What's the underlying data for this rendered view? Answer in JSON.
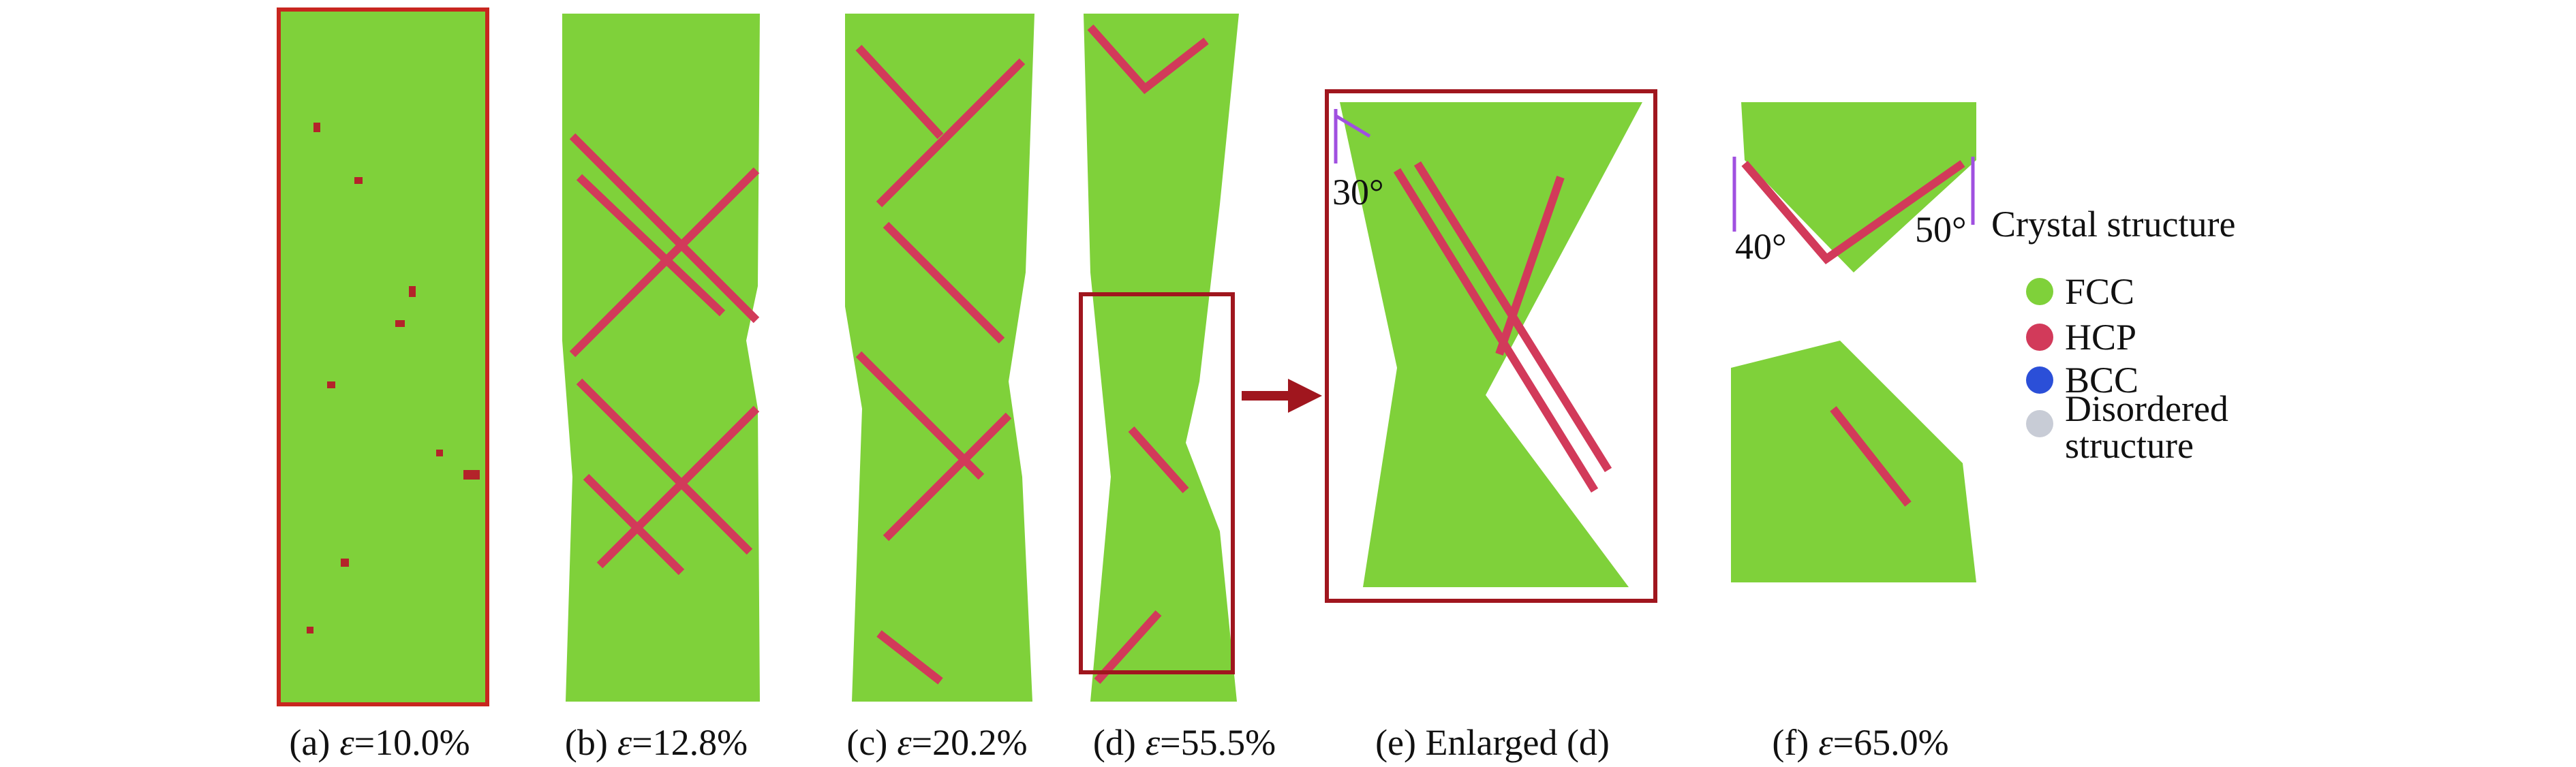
{
  "captions": [
    {
      "label": "(a)",
      "symbol": "ε",
      "value": "=10.0%"
    },
    {
      "label": "(b)",
      "symbol": "ε",
      "value": "=12.8%"
    },
    {
      "label": "(c)",
      "symbol": "ε",
      "value": "=20.2%"
    },
    {
      "label": "(d)",
      "symbol": "ε",
      "value": "=55.5%"
    },
    {
      "label": "(e) Enlarged (d)"
    },
    {
      "label": "(f)",
      "symbol": "ε",
      "value": "=65.0%"
    }
  ],
  "angles": [
    "30°",
    "40°",
    "50°"
  ],
  "legend": {
    "title": "Crystal structure",
    "items": [
      "FCC",
      "HCP",
      "BCC",
      [
        "Disordered",
        "structure"
      ]
    ]
  }
}
